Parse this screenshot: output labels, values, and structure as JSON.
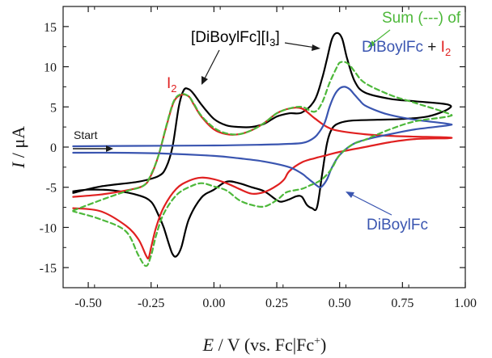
{
  "chart_data": {
    "type": "line",
    "xlabel": {
      "var": "E",
      "rest": " / V (vs. Fc|Fc",
      "sup": "+",
      "close": ")"
    },
    "ylabel": {
      "var": "I",
      "rest": " / μA"
    },
    "xlim": [
      -0.6,
      1.0
    ],
    "ylim": [
      -17.5,
      17.5
    ],
    "xticks": [
      -0.5,
      -0.25,
      0.0,
      0.25,
      0.5,
      0.75,
      1.0
    ],
    "xtick_labels": [
      "-0.50",
      "-0.25",
      "0.00",
      "0.25",
      "0.50",
      "0.75",
      "1.00"
    ],
    "yticks": [
      -15,
      -10,
      -5,
      0,
      5,
      10,
      15
    ],
    "ytick_labels": [
      "-15",
      "-10",
      "-5",
      "0",
      "5",
      "10",
      "15"
    ],
    "grid": false,
    "annotations": {
      "start": "Start",
      "complex": {
        "main": "[DiBoylFc][I",
        "sub": "3",
        "close": "]"
      },
      "iodine": {
        "main": "I",
        "sub": "2"
      },
      "sum": {
        "line1": "Sum (---) of",
        "part1": "DiBoylFc",
        "plus": " + ",
        "part2": "I",
        "sub": "2"
      },
      "diboyl": "DiBoylFc"
    },
    "series": [
      {
        "key": "complex",
        "color": "#000000",
        "dash": "",
        "x": [
          -0.56,
          -0.45,
          -0.3,
          -0.22,
          -0.19,
          -0.165,
          -0.14,
          -0.12,
          -0.1,
          -0.08,
          -0.05,
          0.0,
          0.05,
          0.1,
          0.15,
          0.2,
          0.25,
          0.3,
          0.35,
          0.4,
          0.43,
          0.45,
          0.47,
          0.49,
          0.51,
          0.53,
          0.56,
          0.6,
          0.7,
          0.8,
          0.93,
          0.93,
          0.85,
          0.75,
          0.65,
          0.55,
          0.5,
          0.47,
          0.45,
          0.43,
          0.41,
          0.39,
          0.37,
          0.35,
          0.33,
          0.3,
          0.27,
          0.25,
          0.2,
          0.15,
          0.1,
          0.05,
          0.0,
          -0.05,
          -0.1,
          -0.13,
          -0.15,
          -0.165,
          -0.18,
          -0.2,
          -0.22,
          -0.25,
          -0.3,
          -0.4,
          -0.5,
          -0.56
        ],
        "y": [
          -5.7,
          -4.9,
          -4.3,
          -3.6,
          -2.5,
          0.0,
          5.0,
          7.1,
          7.2,
          6.6,
          5.3,
          3.5,
          2.7,
          2.5,
          2.5,
          2.9,
          3.8,
          4.2,
          4.3,
          5.8,
          8.5,
          11.0,
          13.5,
          14.2,
          13.5,
          11.0,
          8.2,
          6.8,
          6.0,
          5.7,
          5.3,
          4.7,
          3.8,
          3.5,
          3.4,
          3.3,
          3.0,
          2.3,
          0.5,
          -3.5,
          -7.5,
          -7.6,
          -7.2,
          -6.2,
          -6.1,
          -6.5,
          -6.8,
          -6.6,
          -5.5,
          -5.0,
          -4.5,
          -4.3,
          -5.3,
          -6.3,
          -9.0,
          -12.5,
          -13.6,
          -13.3,
          -12.0,
          -10.0,
          -8.5,
          -6.8,
          -6.0,
          -5.4,
          -5.3,
          -5.5
        ]
      },
      {
        "key": "iodine",
        "color": "#e02020",
        "dash": "",
        "x": [
          -0.56,
          -0.45,
          -0.35,
          -0.28,
          -0.25,
          -0.22,
          -0.19,
          -0.16,
          -0.13,
          -0.1,
          -0.08,
          -0.05,
          0.0,
          0.05,
          0.1,
          0.15,
          0.2,
          0.25,
          0.3,
          0.35,
          0.4,
          0.45,
          0.5,
          0.6,
          0.7,
          0.8,
          0.93,
          0.93,
          0.8,
          0.7,
          0.6,
          0.5,
          0.45,
          0.4,
          0.35,
          0.3,
          0.28,
          0.25,
          0.2,
          0.15,
          0.1,
          0.05,
          0.0,
          -0.05,
          -0.1,
          -0.15,
          -0.2,
          -0.23,
          -0.25,
          -0.26,
          -0.27,
          -0.3,
          -0.35,
          -0.45,
          -0.56
        ],
        "y": [
          -6.2,
          -5.9,
          -5.4,
          -4.8,
          -3.5,
          -1.0,
          2.5,
          5.6,
          6.5,
          6.3,
          5.3,
          3.8,
          2.2,
          1.6,
          1.6,
          2.1,
          3.0,
          4.2,
          4.8,
          4.8,
          3.6,
          2.5,
          2.0,
          1.6,
          1.4,
          1.3,
          1.2,
          1.1,
          1.0,
          0.6,
          0.0,
          -0.6,
          -1.0,
          -1.4,
          -1.9,
          -3.0,
          -4.0,
          -4.8,
          -5.6,
          -5.8,
          -5.2,
          -4.5,
          -4.0,
          -3.8,
          -4.2,
          -5.2,
          -7.5,
          -10.0,
          -12.5,
          -13.8,
          -13.5,
          -11.5,
          -9.8,
          -8.0,
          -7.6
        ]
      },
      {
        "key": "diboyl",
        "color": "#3a55b0",
        "dash": "",
        "x": [
          -0.56,
          -0.3,
          0.0,
          0.2,
          0.3,
          0.35,
          0.38,
          0.41,
          0.44,
          0.46,
          0.48,
          0.5,
          0.52,
          0.54,
          0.56,
          0.58,
          0.6,
          0.65,
          0.7,
          0.8,
          0.93,
          0.93,
          0.8,
          0.7,
          0.6,
          0.55,
          0.5,
          0.47,
          0.45,
          0.43,
          0.42,
          0.41,
          0.39,
          0.37,
          0.35,
          0.3,
          0.2,
          0.1,
          0.0,
          -0.2,
          -0.4,
          -0.56
        ],
        "y": [
          0.1,
          0.15,
          0.2,
          0.3,
          0.4,
          0.5,
          0.8,
          1.5,
          3.0,
          5.0,
          6.5,
          7.3,
          7.5,
          7.2,
          6.5,
          5.8,
          5.2,
          4.5,
          4.0,
          3.4,
          2.9,
          2.7,
          2.2,
          1.6,
          0.9,
          0.3,
          -1.0,
          -2.5,
          -4.0,
          -4.9,
          -5.0,
          -4.8,
          -4.3,
          -3.8,
          -3.3,
          -2.5,
          -1.8,
          -1.4,
          -1.1,
          -0.8,
          -0.7,
          -0.7
        ]
      },
      {
        "key": "sum",
        "color": "#4db83a",
        "dash": "6,4",
        "x": [
          -0.56,
          -0.45,
          -0.35,
          -0.28,
          -0.25,
          -0.22,
          -0.19,
          -0.16,
          -0.13,
          -0.1,
          -0.08,
          -0.05,
          0.0,
          0.05,
          0.1,
          0.15,
          0.2,
          0.25,
          0.3,
          0.35,
          0.4,
          0.43,
          0.46,
          0.49,
          0.5,
          0.52,
          0.54,
          0.56,
          0.6,
          0.7,
          0.8,
          0.93,
          0.93,
          0.8,
          0.7,
          0.6,
          0.55,
          0.5,
          0.47,
          0.45,
          0.43,
          0.41,
          0.38,
          0.35,
          0.3,
          0.28,
          0.25,
          0.2,
          0.15,
          0.1,
          0.05,
          0.0,
          -0.05,
          -0.1,
          -0.15,
          -0.2,
          -0.23,
          -0.25,
          -0.27,
          -0.3,
          -0.35,
          -0.45,
          -0.56
        ],
        "y": [
          -7.9,
          -6.6,
          -5.5,
          -4.8,
          -3.4,
          -1.0,
          2.6,
          5.7,
          6.6,
          6.3,
          5.4,
          3.9,
          2.4,
          1.7,
          1.6,
          2.1,
          3.0,
          4.2,
          4.8,
          5.0,
          4.4,
          5.5,
          8.0,
          10.0,
          10.5,
          10.6,
          10.2,
          9.4,
          8.0,
          6.5,
          5.5,
          4.2,
          3.8,
          3.2,
          2.2,
          0.9,
          0.3,
          -1.0,
          -2.6,
          -3.4,
          -4.0,
          -4.4,
          -4.8,
          -5.2,
          -5.5,
          -5.8,
          -6.6,
          -7.4,
          -7.2,
          -6.6,
          -5.4,
          -4.9,
          -4.5,
          -5.0,
          -6.0,
          -8.3,
          -11.0,
          -13.5,
          -14.8,
          -13.5,
          -10.5,
          -9.0,
          -8.0
        ]
      }
    ]
  }
}
